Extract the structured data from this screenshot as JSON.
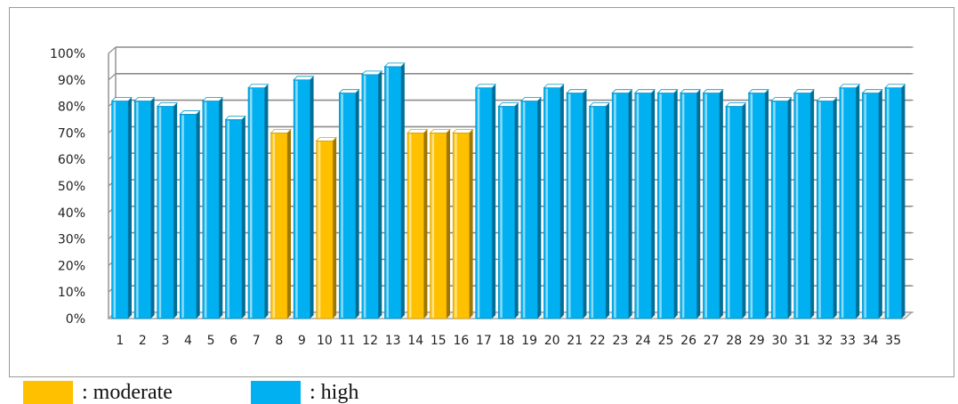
{
  "chart_data": {
    "type": "bar",
    "categories": [
      "1",
      "2",
      "3",
      "4",
      "5",
      "6",
      "7",
      "8",
      "9",
      "10",
      "11",
      "12",
      "13",
      "14",
      "15",
      "16",
      "17",
      "18",
      "19",
      "20",
      "21",
      "22",
      "23",
      "24",
      "25",
      "26",
      "27",
      "28",
      "29",
      "30",
      "31",
      "32",
      "33",
      "34",
      "35"
    ],
    "values": [
      82,
      82,
      80,
      77,
      82,
      75,
      87,
      70,
      90,
      67,
      85,
      92,
      95,
      70,
      70,
      70,
      87,
      80,
      82,
      87,
      85,
      80,
      85,
      85,
      85,
      85,
      85,
      80,
      85,
      82,
      85,
      82,
      87,
      85,
      87
    ],
    "levels": [
      "high",
      "high",
      "high",
      "high",
      "high",
      "high",
      "high",
      "moderate",
      "high",
      "moderate",
      "high",
      "high",
      "high",
      "moderate",
      "moderate",
      "moderate",
      "high",
      "high",
      "high",
      "high",
      "high",
      "high",
      "high",
      "high",
      "high",
      "high",
      "high",
      "high",
      "high",
      "high",
      "high",
      "high",
      "high",
      "high",
      "high"
    ],
    "y_ticks": [
      "0%",
      "10%",
      "20%",
      "30%",
      "40%",
      "50%",
      "60%",
      "70%",
      "80%",
      "90%",
      "100%"
    ],
    "ylim": [
      0,
      100
    ],
    "grid": true,
    "colors": {
      "moderate": "#ffc000",
      "high": "#00b0f0"
    },
    "legend": [
      {
        "key": "moderate",
        "label": ": moderate"
      },
      {
        "key": "high",
        "label": ": high"
      }
    ]
  }
}
